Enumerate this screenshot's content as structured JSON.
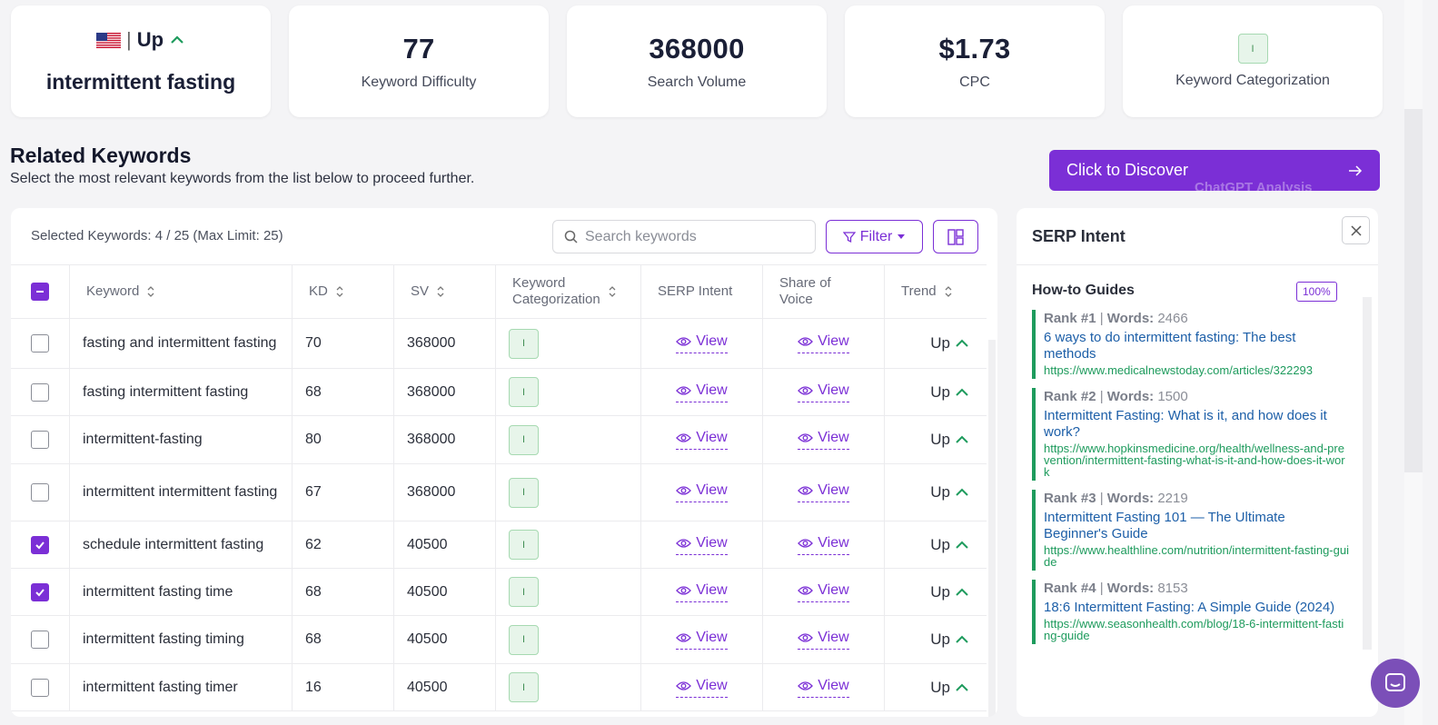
{
  "summary": {
    "trend": "Up",
    "keyword": "intermittent fasting",
    "difficulty": {
      "value": "77",
      "label": "Keyword Difficulty"
    },
    "volume": {
      "value": "368000",
      "label": "Search Volume"
    },
    "cpc": {
      "value": "$1.73",
      "label": "CPC"
    },
    "categorization": {
      "badge": "I",
      "label": "Keyword Categorization"
    }
  },
  "related": {
    "title": "Related Keywords",
    "subtitle": "Select the most relevant keywords from the list below to proceed further."
  },
  "discover": {
    "label": "Click to Discover",
    "ghost": "ChatGPT Analysis"
  },
  "toolbar": {
    "selected": "Selected Keywords: 4 / 25 (Max Limit: 25)",
    "search_placeholder": "Search keywords",
    "filter_label": "Filter"
  },
  "table": {
    "headers": {
      "keyword": "Keyword",
      "kd": "KD",
      "sv": "SV",
      "cat1": "Keyword",
      "cat2": "Categorization",
      "serp": "SERP Intent",
      "sov1": "Share of",
      "sov2": "Voice",
      "trend": "Trend"
    },
    "rows": [
      {
        "keyword": "fasting and intermittent fasting",
        "kd": "70",
        "sv": "368000",
        "cat": "I",
        "serp": "View",
        "sov": "View",
        "trend": "Up"
      },
      {
        "keyword": "fasting intermittent fasting",
        "kd": "68",
        "sv": "368000",
        "cat": "I",
        "serp": "View",
        "sov": "View",
        "trend": "Up"
      },
      {
        "keyword": "intermittent-fasting",
        "kd": "80",
        "sv": "368000",
        "cat": "I",
        "serp": "View",
        "sov": "View",
        "trend": "Up"
      },
      {
        "keyword": "intermittent intermittent fasting",
        "kd": "67",
        "sv": "368000",
        "cat": "I",
        "serp": "View",
        "sov": "View",
        "trend": "Up"
      },
      {
        "keyword": "schedule intermittent fasting",
        "kd": "62",
        "sv": "40500",
        "cat": "I",
        "serp": "View",
        "sov": "View",
        "trend": "Up"
      },
      {
        "keyword": "intermittent fasting time",
        "kd": "68",
        "sv": "40500",
        "cat": "I",
        "serp": "View",
        "sov": "View",
        "trend": "Up"
      },
      {
        "keyword": "intermittent fasting timing",
        "kd": "68",
        "sv": "40500",
        "cat": "I",
        "serp": "View",
        "sov": "View",
        "trend": "Up"
      },
      {
        "keyword": "intermittent fasting timer",
        "kd": "16",
        "sv": "40500",
        "cat": "I",
        "serp": "View",
        "sov": "View",
        "trend": "Up"
      }
    ]
  },
  "serp": {
    "title": "SERP Intent",
    "subtitle": "How-to Guides",
    "percent": "100%",
    "items": [
      {
        "rank": "Rank #1",
        "words_label": "Words:",
        "words": "2466",
        "title": "6 ways to do intermittent fasting: The best methods",
        "url": "https://www.medicalnewstoday.com/articles/322293"
      },
      {
        "rank": "Rank #2",
        "words_label": "Words:",
        "words": "1500",
        "title": "Intermittent Fasting: What is it, and how does it work?",
        "url": "https://www.hopkinsmedicine.org/health/wellness-and-prevention/intermittent-fasting-what-is-it-and-how-does-it-work"
      },
      {
        "rank": "Rank #3",
        "words_label": "Words:",
        "words": "2219",
        "title": "Intermittent Fasting 101 — The Ultimate Beginner's Guide",
        "url": "https://www.healthline.com/nutrition/intermittent-fasting-guide"
      },
      {
        "rank": "Rank #4",
        "words_label": "Words:",
        "words": "8153",
        "title": "18:6 Intermittent Fasting: A Simple Guide (2024)",
        "url": "https://www.seasonhealth.com/blog/18-6-intermittent-fasting-guide"
      }
    ]
  },
  "colors": {
    "accent": "#7b2fd6",
    "green": "#1e9b5d",
    "link": "#1d5fa8"
  }
}
